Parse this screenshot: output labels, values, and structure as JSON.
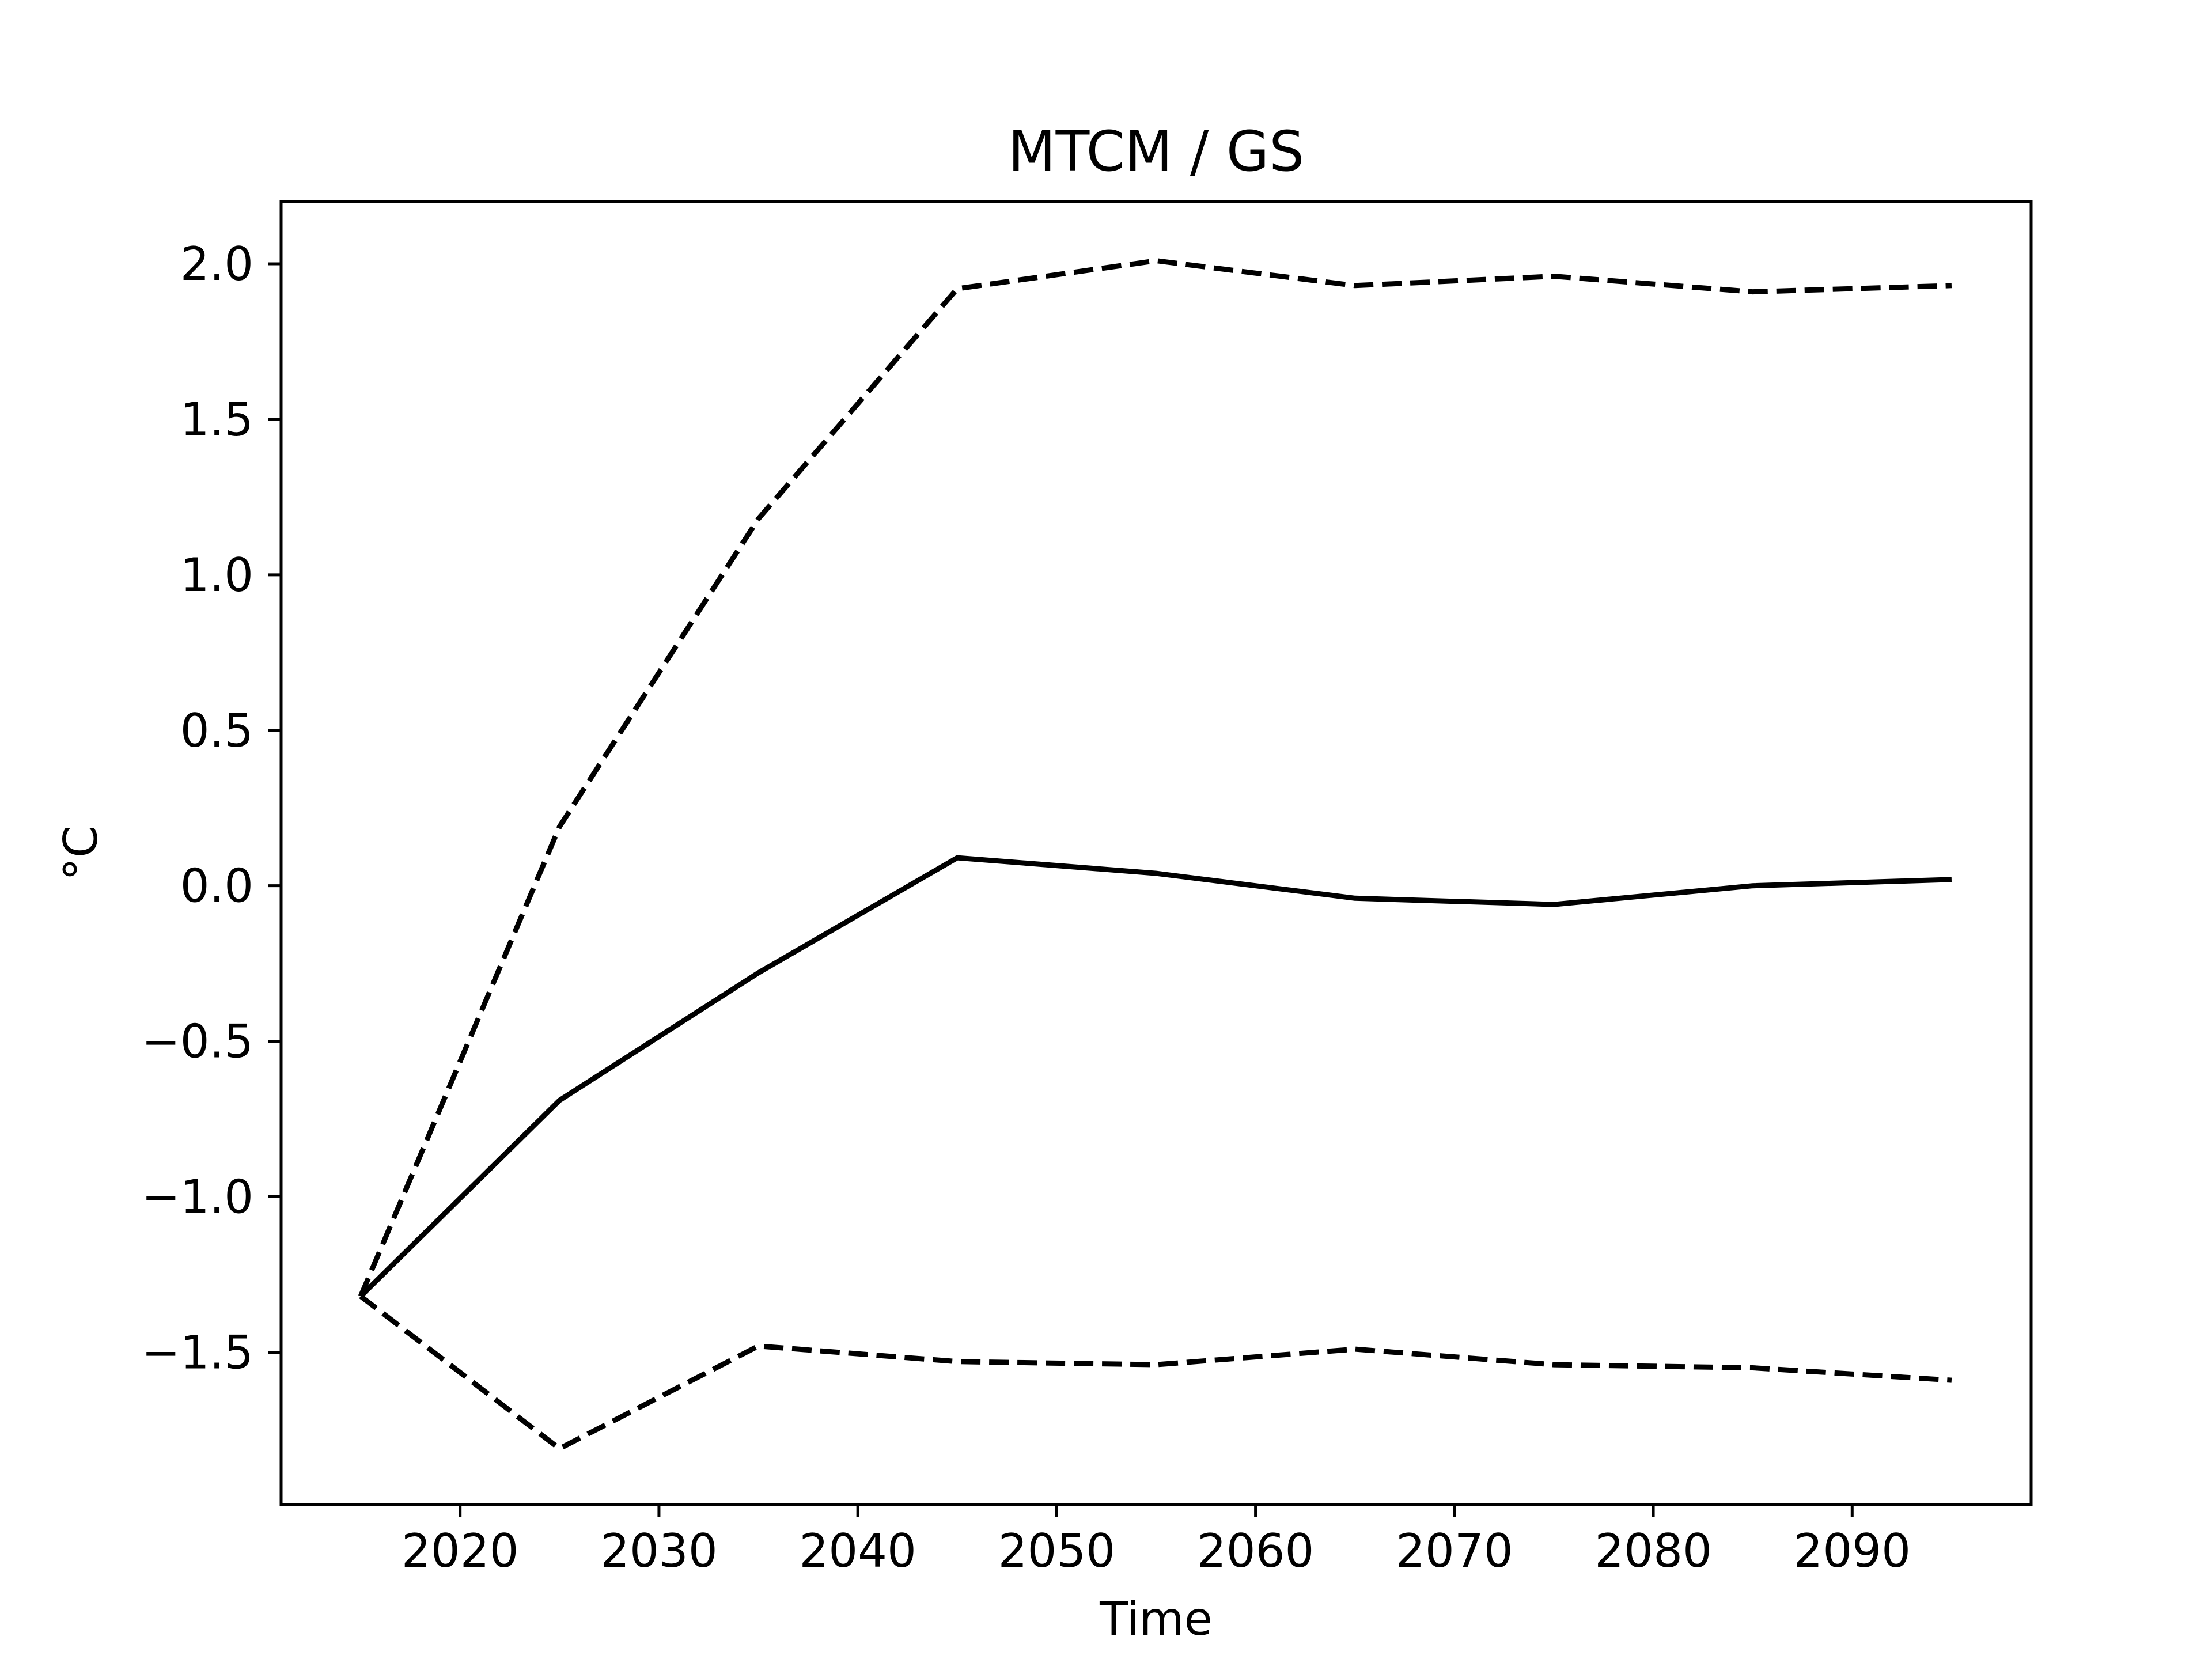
{
  "chart_data": {
    "type": "line",
    "title": "MTCM / GS",
    "xlabel": "Time",
    "ylabel": "°C",
    "xlim": [
      2011,
      2099
    ],
    "ylim": [
      -1.99,
      2.2
    ],
    "xticks": [
      2020,
      2030,
      2040,
      2050,
      2060,
      2070,
      2080,
      2090
    ],
    "xtick_labels": [
      "2020",
      "2030",
      "2040",
      "2050",
      "2060",
      "2070",
      "2080",
      "2090"
    ],
    "yticks": [
      -1.5,
      -1.0,
      -0.5,
      0.0,
      0.5,
      1.0,
      1.5,
      2.0
    ],
    "ytick_labels": [
      "−1.5",
      "−1.0",
      "−0.5",
      "0.0",
      "0.5",
      "1.0",
      "1.5",
      "2.0"
    ],
    "grid": false,
    "legend": "none",
    "x": [
      2015,
      2025,
      2035,
      2045,
      2055,
      2065,
      2075,
      2085,
      2095
    ],
    "series": [
      {
        "style": "dashed",
        "color": "#000000",
        "values": [
          -1.32,
          0.19,
          1.18,
          1.92,
          2.01,
          1.93,
          1.96,
          1.91,
          1.93
        ]
      },
      {
        "style": "solid",
        "color": "#000000",
        "values": [
          -1.32,
          -0.69,
          -0.28,
          0.09,
          0.04,
          -0.04,
          -0.06,
          0.0,
          0.02
        ]
      },
      {
        "style": "dashed",
        "color": "#000000",
        "values": [
          -1.32,
          -1.81,
          -1.48,
          -1.53,
          -1.54,
          -1.49,
          -1.54,
          -1.55,
          -1.59
        ]
      }
    ]
  }
}
